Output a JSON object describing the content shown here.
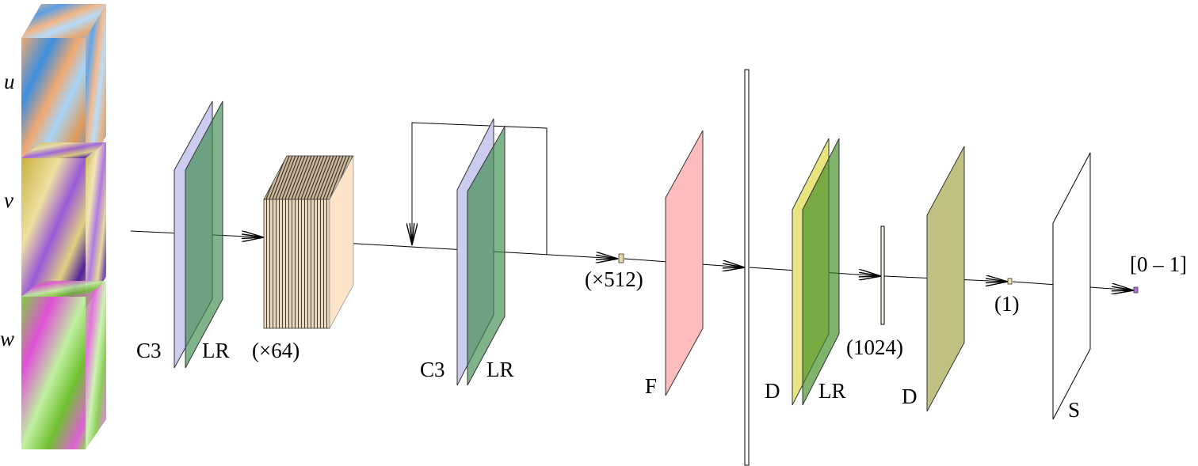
{
  "inputs": [
    {
      "label": "u",
      "colors": [
        "#3d8fe0",
        "#f0a870",
        "#a8d4f8"
      ]
    },
    {
      "label": "v",
      "colors": [
        "#d8c050",
        "#9a5ad8",
        "#eee0a0"
      ]
    },
    {
      "label": "w",
      "colors": [
        "#e050d8",
        "#80d040",
        "#c0f0a0"
      ]
    }
  ],
  "layers": {
    "c3_1": "C3",
    "lr_1": "LR",
    "features_64": "(×64)",
    "c3_2": "C3",
    "lr_2": "LR",
    "features_512": "(×512)",
    "flatten": "F",
    "dense_1": "D",
    "lr_3": "LR",
    "units_1024": "(1024)",
    "dense_2": "D",
    "units_1": "(1)",
    "sigmoid": "S",
    "output": "[0 – 1]"
  },
  "colors": {
    "conv": "#ccccf0",
    "leaky_relu": "#6aaa72",
    "feature_box": "#fde4c8",
    "flatten": "#ffbcbc",
    "dense_1": "#e8e480",
    "leaky_relu_dense": "#5a9a30",
    "dense_2": "#c0c080",
    "sigmoid": "#ffffff",
    "output_cell": "#b070e0"
  }
}
